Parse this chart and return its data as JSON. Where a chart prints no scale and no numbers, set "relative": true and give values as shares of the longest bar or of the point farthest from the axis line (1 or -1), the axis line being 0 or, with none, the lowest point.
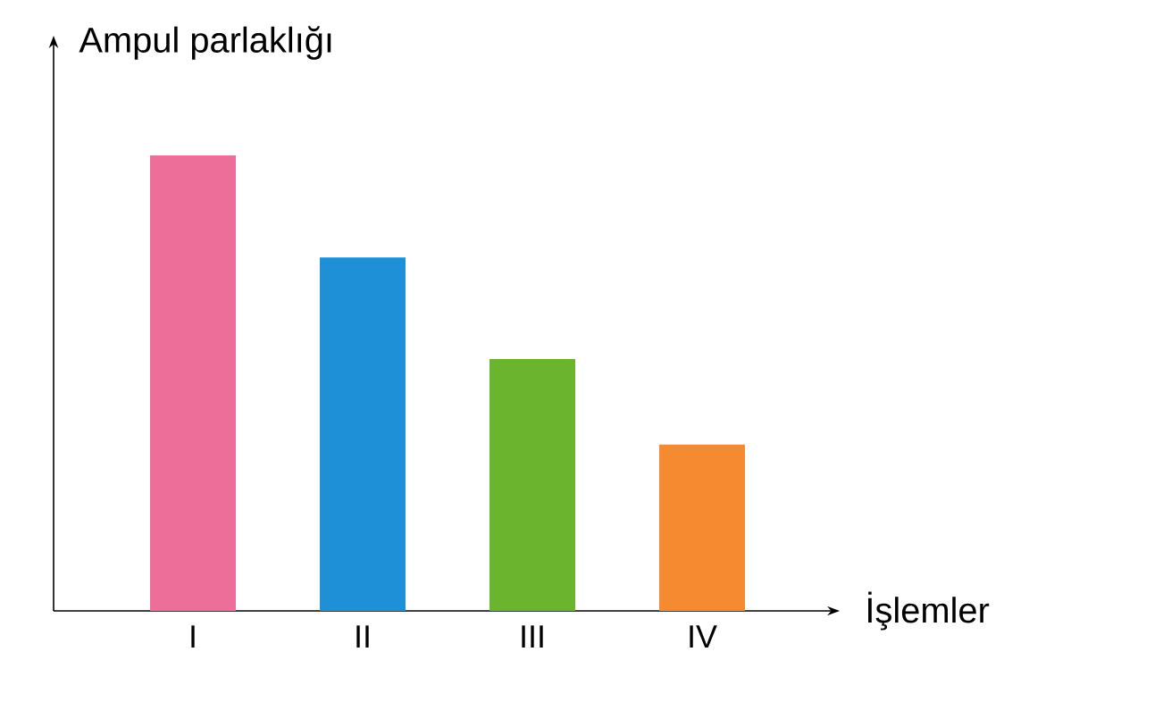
{
  "chart_data": {
    "type": "bar",
    "relative": true,
    "xlabel": "İşlemler",
    "ylabel": "Ampul parlaklığı",
    "categories": [
      "I",
      "II",
      "III",
      "IV"
    ],
    "values": [
      1,
      0.776,
      0.553,
      0.365
    ],
    "colors": [
      "#ee6e9a",
      "#1e90d8",
      "#6ab42e",
      "#f58a30"
    ]
  }
}
